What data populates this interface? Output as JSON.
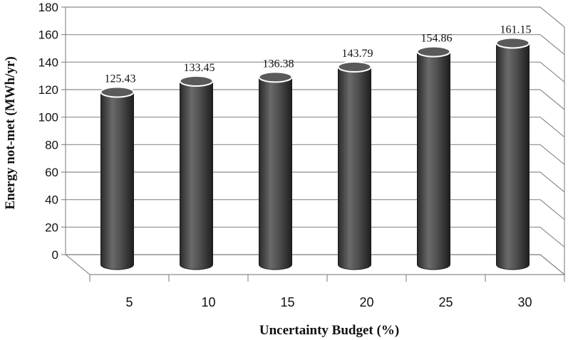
{
  "chart_data": {
    "type": "bar",
    "style": "3d-cylinder",
    "title": "",
    "xlabel": "Uncertainty Budget (%)",
    "ylabel": "Energy not-met (MWh/yr)",
    "categories": [
      "5",
      "10",
      "15",
      "20",
      "25",
      "30"
    ],
    "values": [
      125.43,
      133.45,
      136.38,
      143.79,
      154.86,
      161.15
    ],
    "data_labels": [
      "125.43",
      "133.45",
      "136.38",
      "143.79",
      "154.86",
      "161.15"
    ],
    "ylim": [
      0,
      180
    ],
    "yticks": [
      "0",
      "20",
      "40",
      "60",
      "80",
      "100",
      "120",
      "140",
      "160",
      "180"
    ],
    "grid": true,
    "legend": "none",
    "colors": {
      "bar": "#4a4a4a",
      "bar_top": "#5a5a5a",
      "grid": "#8c8c8c"
    }
  }
}
